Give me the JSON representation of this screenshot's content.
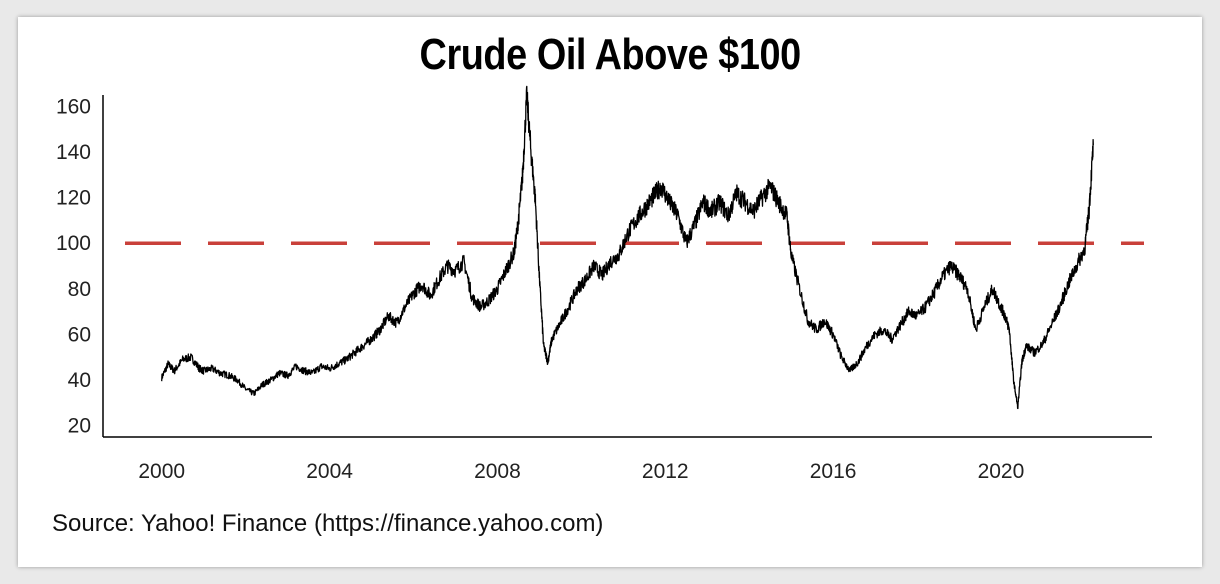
{
  "chart_data": {
    "type": "line",
    "title": "Crude Oil Above $100",
    "xlabel": "",
    "ylabel": "",
    "xlim": [
      1998.6,
      2023.6
    ],
    "ylim": [
      15,
      165
    ],
    "x_ticks": [
      2000,
      2004,
      2008,
      2012,
      2016,
      2020
    ],
    "x_tick_labels": [
      "2000",
      "2004",
      "2008",
      "2012",
      "2016",
      "2020"
    ],
    "y_ticks": [
      20,
      40,
      60,
      80,
      100,
      120,
      140,
      160
    ],
    "y_tick_labels": [
      "20",
      "40",
      "60",
      "80",
      "100",
      "120",
      "140",
      "160"
    ],
    "grid": false,
    "legend": "none",
    "line_color": "#000000",
    "reference_line": {
      "y": 100,
      "color": "#c9403a",
      "style": "dashed"
    },
    "series": [
      {
        "x": [
          2000.0,
          2000.15,
          2000.3,
          2000.5,
          2000.7,
          2000.9,
          2001.0,
          2001.2,
          2001.4,
          2001.6,
          2001.8,
          2002.0,
          2002.2,
          2002.4,
          2002.6,
          2002.8,
          2003.0,
          2003.2,
          2003.4,
          2003.6,
          2003.8,
          2004.0,
          2004.2,
          2004.4,
          2004.6,
          2004.8,
          2005.0,
          2005.2,
          2005.4,
          2005.6,
          2005.8,
          2006.0,
          2006.2,
          2006.4,
          2006.6,
          2006.8,
          2007.0,
          2007.2,
          2007.4,
          2007.6,
          2007.8,
          2008.0,
          2008.2,
          2008.4,
          2008.5,
          2008.6,
          2008.7,
          2008.8,
          2008.9,
          2009.0,
          2009.1,
          2009.2,
          2009.3,
          2009.5,
          2009.7,
          2009.9,
          2010.1,
          2010.3,
          2010.5,
          2010.7,
          2010.9,
          2011.1,
          2011.3,
          2011.5,
          2011.7,
          2011.9,
          2012.1,
          2012.3,
          2012.5,
          2012.7,
          2012.9,
          2013.1,
          2013.3,
          2013.5,
          2013.7,
          2013.9,
          2014.1,
          2014.3,
          2014.5,
          2014.7,
          2014.9,
          2015.0,
          2015.2,
          2015.4,
          2015.6,
          2015.8,
          2016.0,
          2016.2,
          2016.4,
          2016.6,
          2016.8,
          2017.0,
          2017.2,
          2017.4,
          2017.6,
          2017.8,
          2018.0,
          2018.2,
          2018.4,
          2018.6,
          2018.8,
          2019.0,
          2019.2,
          2019.4,
          2019.6,
          2019.8,
          2020.0,
          2020.1,
          2020.2,
          2020.3,
          2020.4,
          2020.5,
          2020.6,
          2020.8,
          2021.0,
          2021.2,
          2021.4,
          2021.6,
          2021.8,
          2022.0,
          2022.1,
          2022.2
        ],
        "values": [
          41,
          47,
          44,
          49,
          50,
          45,
          44,
          45,
          43,
          42,
          40,
          36,
          34,
          38,
          40,
          43,
          42,
          46,
          44,
          43,
          46,
          45,
          47,
          49,
          52,
          55,
          58,
          62,
          68,
          65,
          72,
          78,
          82,
          77,
          84,
          90,
          88,
          92,
          76,
          72,
          75,
          80,
          88,
          96,
          110,
          130,
          165,
          140,
          120,
          85,
          55,
          48,
          58,
          65,
          72,
          80,
          84,
          90,
          86,
          92,
          95,
          104,
          110,
          115,
          120,
          125,
          118,
          112,
          100,
          108,
          118,
          114,
          118,
          112,
          122,
          118,
          114,
          120,
          125,
          118,
          112,
          95,
          80,
          66,
          62,
          66,
          60,
          50,
          44,
          48,
          55,
          60,
          62,
          58,
          64,
          70,
          68,
          72,
          78,
          85,
          90,
          86,
          80,
          62,
          72,
          80,
          72,
          68,
          62,
          40,
          28,
          48,
          55,
          52,
          56,
          64,
          72,
          82,
          90,
          98,
          115,
          143
        ]
      }
    ]
  }
}
